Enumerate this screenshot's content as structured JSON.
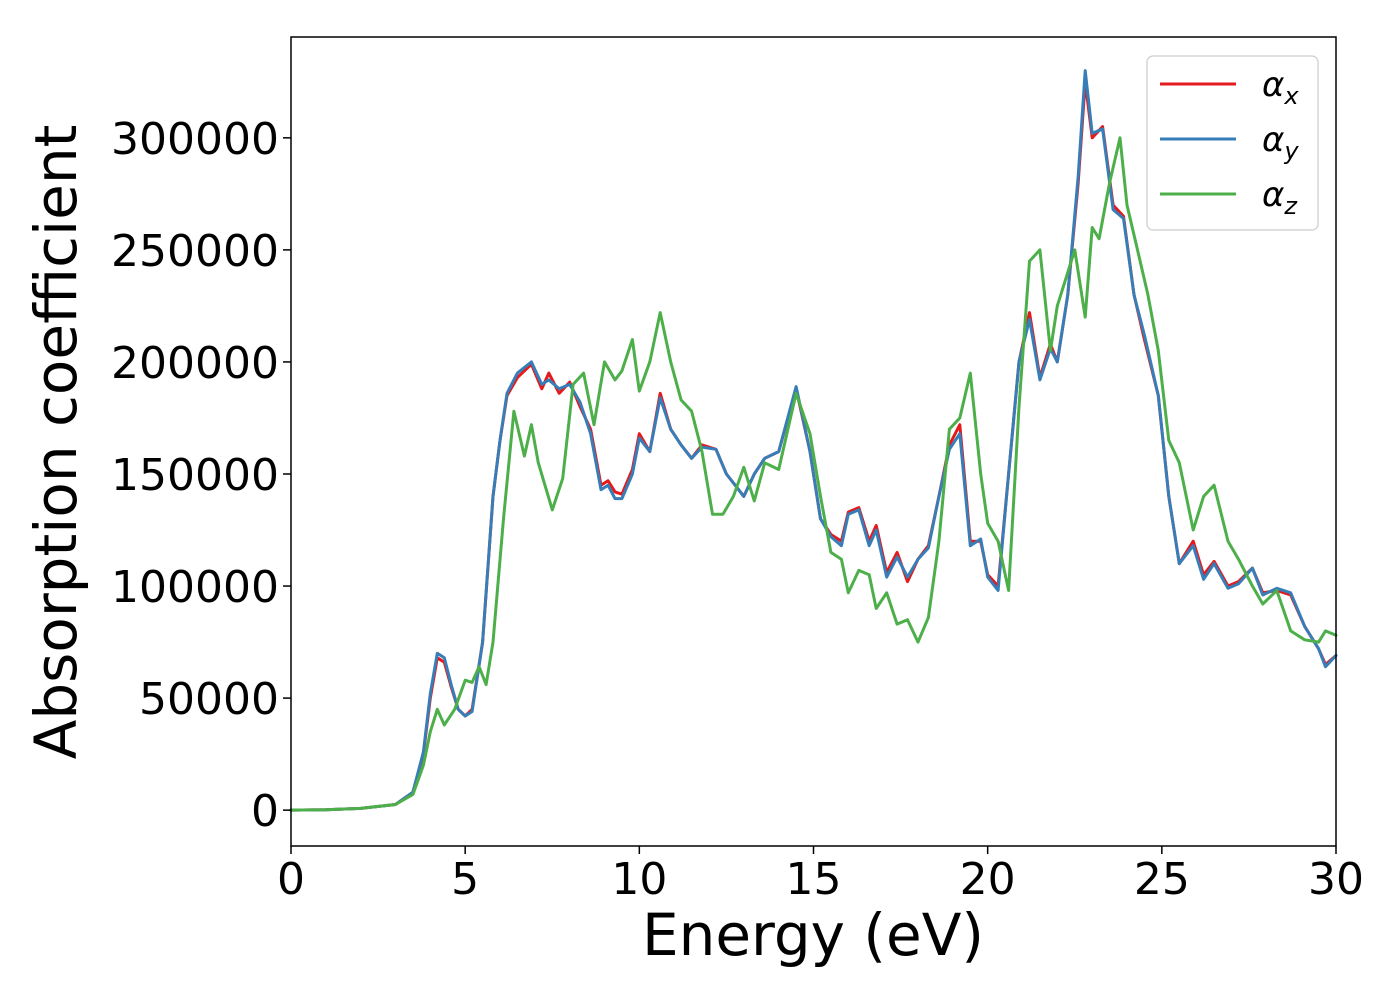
{
  "chart_data": {
    "type": "line",
    "title": "",
    "xlabel": "Energy (eV)",
    "ylabel": "Absorption coefficient",
    "xlim": [
      0,
      30
    ],
    "ylim": [
      -16000,
      345000
    ],
    "xticks": [
      0,
      5,
      10,
      15,
      20,
      25,
      30
    ],
    "yticks": [
      0,
      50000,
      100000,
      150000,
      200000,
      250000,
      300000
    ],
    "grid": false,
    "legend_position": "top-right",
    "series": [
      {
        "name": "αx",
        "symbol": "α",
        "subscript": "x",
        "color": "#e41a1c",
        "x": [
          0,
          1,
          2,
          3,
          3.5,
          3.8,
          4.0,
          4.2,
          4.4,
          4.6,
          4.8,
          5.0,
          5.2,
          5.5,
          5.8,
          6.0,
          6.2,
          6.5,
          6.9,
          7.2,
          7.4,
          7.7,
          8.0,
          8.3,
          8.6,
          8.9,
          9.1,
          9.3,
          9.5,
          9.8,
          10.0,
          10.3,
          10.6,
          10.9,
          11.2,
          11.5,
          11.8,
          12.2,
          12.5,
          12.8,
          13.0,
          13.3,
          13.6,
          14.0,
          14.5,
          14.9,
          15.2,
          15.5,
          15.8,
          16.0,
          16.3,
          16.6,
          16.8,
          17.1,
          17.4,
          17.7,
          18.0,
          18.3,
          18.6,
          18.9,
          19.2,
          19.5,
          19.8,
          20.0,
          20.3,
          20.6,
          20.9,
          21.2,
          21.5,
          21.8,
          22.0,
          22.3,
          22.6,
          22.8,
          23.0,
          23.3,
          23.6,
          23.9,
          24.2,
          24.5,
          24.9,
          25.2,
          25.5,
          25.9,
          26.2,
          26.5,
          26.9,
          27.2,
          27.6,
          27.9,
          28.3,
          28.7,
          29.1,
          29.5,
          29.7,
          30.0
        ],
        "values": [
          0,
          200,
          800,
          2500,
          8000,
          25000,
          50000,
          68000,
          66000,
          55000,
          45000,
          42000,
          45000,
          75000,
          140000,
          165000,
          185000,
          193000,
          199000,
          188000,
          195000,
          186000,
          191000,
          180000,
          170000,
          145000,
          147000,
          142000,
          141000,
          152000,
          168000,
          160000,
          186000,
          170000,
          163000,
          157000,
          163000,
          161000,
          150000,
          144000,
          140000,
          150000,
          157000,
          160000,
          188000,
          160000,
          130000,
          123000,
          120000,
          133000,
          135000,
          120000,
          127000,
          106000,
          115000,
          102000,
          112000,
          118000,
          140000,
          163000,
          172000,
          120000,
          120000,
          105000,
          100000,
          150000,
          200000,
          222000,
          193000,
          208000,
          200000,
          230000,
          280000,
          325000,
          300000,
          305000,
          270000,
          265000,
          230000,
          210000,
          185000,
          140000,
          110000,
          120000,
          105000,
          111000,
          100000,
          102000,
          108000,
          97000,
          98000,
          96000,
          82000,
          72000,
          65000,
          69000
        ]
      },
      {
        "name": "αy",
        "symbol": "α",
        "subscript": "y",
        "color": "#377eb8",
        "x": [
          0,
          1,
          2,
          3,
          3.5,
          3.8,
          4.0,
          4.2,
          4.4,
          4.6,
          4.8,
          5.0,
          5.2,
          5.5,
          5.8,
          6.0,
          6.2,
          6.5,
          6.9,
          7.2,
          7.4,
          7.7,
          8.0,
          8.3,
          8.6,
          8.9,
          9.1,
          9.3,
          9.5,
          9.8,
          10.0,
          10.3,
          10.6,
          10.9,
          11.2,
          11.5,
          11.8,
          12.2,
          12.5,
          12.8,
          13.0,
          13.3,
          13.6,
          14.0,
          14.5,
          14.9,
          15.2,
          15.5,
          15.8,
          16.0,
          16.3,
          16.6,
          16.8,
          17.1,
          17.4,
          17.7,
          18.0,
          18.3,
          18.6,
          18.9,
          19.2,
          19.5,
          19.8,
          20.0,
          20.3,
          20.6,
          20.9,
          21.2,
          21.5,
          21.8,
          22.0,
          22.3,
          22.6,
          22.8,
          23.0,
          23.3,
          23.6,
          23.9,
          24.2,
          24.5,
          24.9,
          25.2,
          25.5,
          25.9,
          26.2,
          26.5,
          26.9,
          27.2,
          27.6,
          27.9,
          28.3,
          28.7,
          29.1,
          29.5,
          29.7,
          30.0
        ],
        "values": [
          0,
          200,
          800,
          2500,
          8000,
          26000,
          52000,
          70000,
          68000,
          56000,
          45000,
          42000,
          44000,
          75000,
          140000,
          165000,
          186000,
          195000,
          200000,
          190000,
          192000,
          188000,
          190000,
          182000,
          168000,
          143000,
          145000,
          139000,
          139000,
          150000,
          166000,
          160000,
          184000,
          170000,
          163000,
          157000,
          162000,
          161000,
          150000,
          144000,
          140000,
          150000,
          157000,
          160000,
          189000,
          160000,
          130000,
          122000,
          118000,
          132000,
          134000,
          118000,
          125000,
          104000,
          113000,
          104000,
          112000,
          117000,
          140000,
          161000,
          168000,
          118000,
          121000,
          104000,
          98000,
          150000,
          200000,
          219000,
          192000,
          206000,
          200000,
          230000,
          283000,
          330000,
          302000,
          304000,
          268000,
          264000,
          230000,
          212000,
          185000,
          140000,
          110000,
          118000,
          103000,
          110000,
          99000,
          101000,
          108000,
          96000,
          99000,
          97000,
          82000,
          72000,
          64000,
          69000
        ]
      },
      {
        "name": "αz",
        "symbol": "α",
        "subscript": "z",
        "color": "#4daf4a",
        "x": [
          0,
          1,
          2,
          3,
          3.5,
          3.8,
          4.0,
          4.2,
          4.4,
          4.7,
          5.0,
          5.2,
          5.4,
          5.6,
          5.8,
          6.1,
          6.4,
          6.7,
          6.9,
          7.1,
          7.5,
          7.8,
          8.1,
          8.4,
          8.7,
          9.0,
          9.3,
          9.5,
          9.8,
          10.0,
          10.3,
          10.6,
          10.9,
          11.2,
          11.5,
          11.8,
          12.1,
          12.4,
          12.7,
          13.0,
          13.3,
          13.6,
          14.0,
          14.5,
          14.9,
          15.2,
          15.5,
          15.8,
          16.0,
          16.3,
          16.6,
          16.8,
          17.1,
          17.4,
          17.7,
          18.0,
          18.3,
          18.6,
          18.9,
          19.2,
          19.5,
          19.8,
          20.0,
          20.3,
          20.6,
          20.9,
          21.2,
          21.5,
          21.8,
          22.0,
          22.3,
          22.5,
          22.8,
          23.0,
          23.2,
          23.5,
          23.8,
          24.0,
          24.3,
          24.6,
          24.9,
          25.2,
          25.5,
          25.9,
          26.2,
          26.5,
          26.9,
          27.2,
          27.6,
          27.9,
          28.3,
          28.7,
          29.1,
          29.5,
          29.7,
          30.0
        ],
        "values": [
          0,
          200,
          800,
          2500,
          7000,
          20000,
          35000,
          45000,
          38000,
          45000,
          58000,
          57000,
          64000,
          56000,
          75000,
          130000,
          178000,
          158000,
          172000,
          155000,
          134000,
          148000,
          190000,
          195000,
          172000,
          200000,
          192000,
          196000,
          210000,
          187000,
          200000,
          222000,
          200000,
          183000,
          178000,
          160000,
          132000,
          132000,
          140000,
          153000,
          138000,
          155000,
          152000,
          186000,
          168000,
          140000,
          115000,
          112000,
          97000,
          107000,
          105000,
          90000,
          97000,
          83000,
          85000,
          75000,
          86000,
          120000,
          170000,
          175000,
          195000,
          150000,
          128000,
          120000,
          98000,
          180000,
          245000,
          250000,
          205000,
          225000,
          240000,
          250000,
          220000,
          260000,
          255000,
          280000,
          300000,
          270000,
          250000,
          230000,
          205000,
          165000,
          155000,
          125000,
          140000,
          145000,
          120000,
          112000,
          100000,
          92000,
          98000,
          80000,
          76000,
          75000,
          80000,
          78000
        ]
      }
    ]
  }
}
